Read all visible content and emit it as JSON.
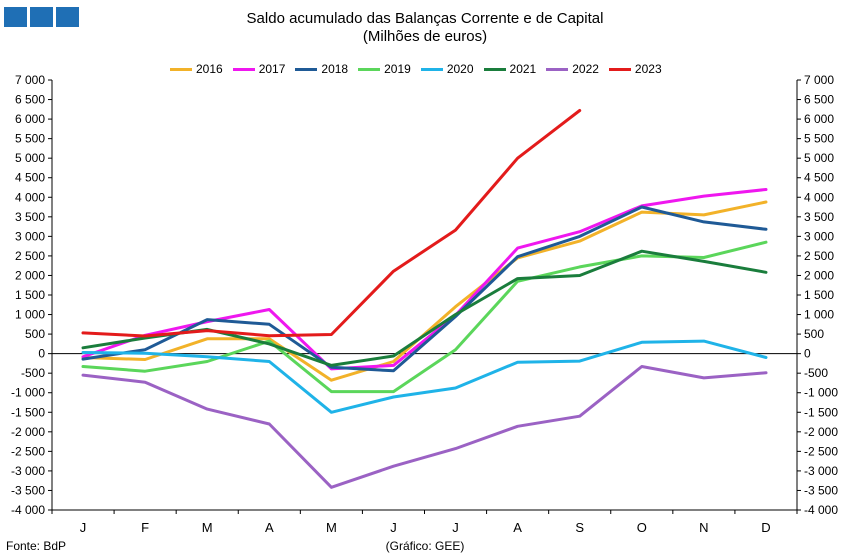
{
  "header": {
    "title": "Saldo acumulado das Balanças Corrente e de Capital",
    "subtitle": "(Milhões de euros)"
  },
  "footer": {
    "source": "Fonte: BdP",
    "credit": "(Gráfico: GEE)"
  },
  "chart_data": {
    "type": "line",
    "title": "Saldo acumulado das Balanças Corrente e de Capital",
    "subtitle": "(Milhões de euros)",
    "categories": [
      "J",
      "F",
      "M",
      "A",
      "M",
      "J",
      "J",
      "A",
      "S",
      "O",
      "N",
      "D"
    ],
    "ylim": [
      -4000,
      7000
    ],
    "yticks": [
      7000,
      6500,
      6000,
      5500,
      5000,
      4500,
      4000,
      3500,
      3000,
      2500,
      2000,
      1500,
      1000,
      500,
      0,
      -500,
      -1000,
      -1500,
      -2000,
      -2500,
      -3000,
      -3500,
      -4000
    ],
    "ytick_labels": [
      "7 000",
      "6 500",
      "6 000",
      "5 500",
      "5 000",
      "4 500",
      "4 000",
      "3 500",
      "3 000",
      "2 500",
      "2 000",
      "1 500",
      "1 000",
      "500",
      "0",
      "-500",
      "-1 000",
      "-1 500",
      "-2 000",
      "-2 500",
      "-3 000",
      "-3 500",
      "-4 000"
    ],
    "grid": false,
    "legend_position": "top",
    "series": [
      {
        "name": "2016",
        "color": "#f2b229",
        "values": [
          -100,
          -150,
          380,
          380,
          -680,
          -200,
          1200,
          2450,
          2880,
          3620,
          3550,
          3880
        ]
      },
      {
        "name": "2017",
        "color": "#ef17ef",
        "values": [
          -80,
          470,
          820,
          1130,
          -390,
          -300,
          980,
          2700,
          3120,
          3780,
          4030,
          4200
        ]
      },
      {
        "name": "2018",
        "color": "#1f5a96",
        "values": [
          -140,
          100,
          870,
          750,
          -350,
          -440,
          950,
          2480,
          3000,
          3750,
          3370,
          3180
        ]
      },
      {
        "name": "2019",
        "color": "#5bd65b",
        "values": [
          -330,
          -450,
          -200,
          320,
          -970,
          -970,
          100,
          1850,
          2220,
          2500,
          2460,
          2850
        ]
      },
      {
        "name": "2020",
        "color": "#1fb3e8",
        "values": [
          30,
          10,
          -80,
          -200,
          -1500,
          -1110,
          -880,
          -220,
          -190,
          290,
          320,
          -100
        ]
      },
      {
        "name": "2021",
        "color": "#1a7d3c",
        "values": [
          150,
          400,
          620,
          250,
          -300,
          -60,
          1000,
          1920,
          2000,
          2620,
          2360,
          2080
        ]
      },
      {
        "name": "2022",
        "color": "#9b62c4",
        "values": [
          -550,
          -730,
          -1420,
          -1800,
          -3420,
          -2880,
          -2430,
          -1860,
          -1600,
          -330,
          -620,
          -490
        ]
      },
      {
        "name": "2023",
        "color": "#e31b1b",
        "values": [
          530,
          450,
          590,
          460,
          490,
          2110,
          3160,
          5000,
          6220,
          null,
          null,
          null
        ]
      }
    ]
  }
}
